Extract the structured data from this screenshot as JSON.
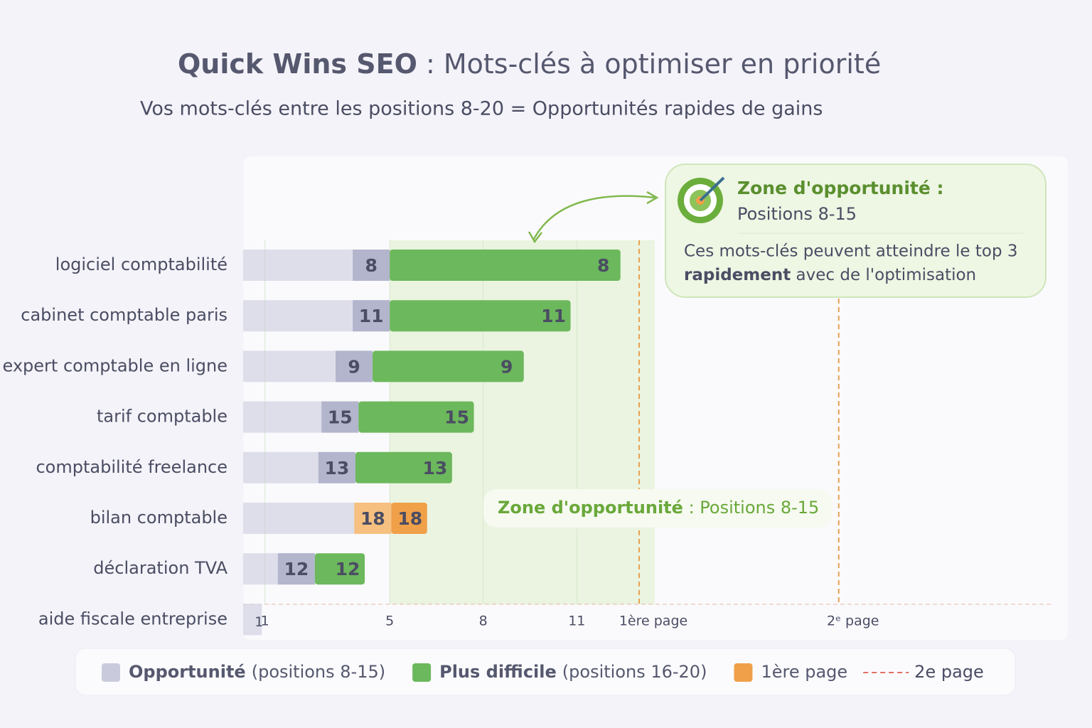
{
  "chart_data": {
    "type": "bar",
    "orientation": "horizontal",
    "title": {
      "bold": "Quick Wins SEO",
      "rest": " : Mots-clés à optimiser en priorité"
    },
    "subtitle": "Vos mots-clés entre les positions 8-20 = Opportunités rapides de gains",
    "categories": [
      "logiciel comptabilité",
      "cabinet comptable paris",
      "expert comptable en ligne",
      "tarif comptable",
      "comptabilité freelance",
      "bilan comptable",
      "déclaration TVA",
      "aide fiscale entreprise"
    ],
    "positions": [
      8,
      11,
      9,
      15,
      13,
      18,
      12,
      1
    ],
    "series": [
      {
        "name": "Opportunité",
        "detail": "(positions 8-15)",
        "color": "#c9cbdd",
        "values": [
          5.0,
          5.0,
          4.45,
          4.0,
          3.9,
          5.05,
          2.6,
          0.9
        ]
      },
      {
        "name": "Plus difficile",
        "detail": "(positions 16-20)",
        "color": "#6cb85c",
        "values": [
          12.4,
          10.8,
          9.3,
          7.7,
          7.0,
          null,
          4.2,
          null
        ]
      },
      {
        "name": "1ère page",
        "color": "#f0a048",
        "values": [
          null,
          null,
          null,
          null,
          null,
          6.2,
          null,
          null
        ]
      }
    ],
    "xlim": [
      0.3,
      26.2
    ],
    "xticks": [
      1,
      5,
      8,
      11
    ],
    "zone": [
      5,
      13.5
    ],
    "reference_lines": [
      {
        "value": 13,
        "label": "1ère page",
        "color": "#e9a050"
      },
      {
        "value": 19.4,
        "label": "2ᵉ page",
        "color": "#e9a050"
      }
    ],
    "legend_line": {
      "label": "2e page",
      "color": "#e07060"
    },
    "callout": {
      "title": "Zone d'opportunité :",
      "subtitle": "Positions 8-15",
      "body": "Ces mots-clés peuvent atteindre le top 3",
      "body_bold": "rapidement",
      "body_rest": " avec de l'optimisation"
    },
    "zone_label": {
      "bold": "Zone d'opportunité",
      "rest": " : Positions 8-15"
    }
  }
}
